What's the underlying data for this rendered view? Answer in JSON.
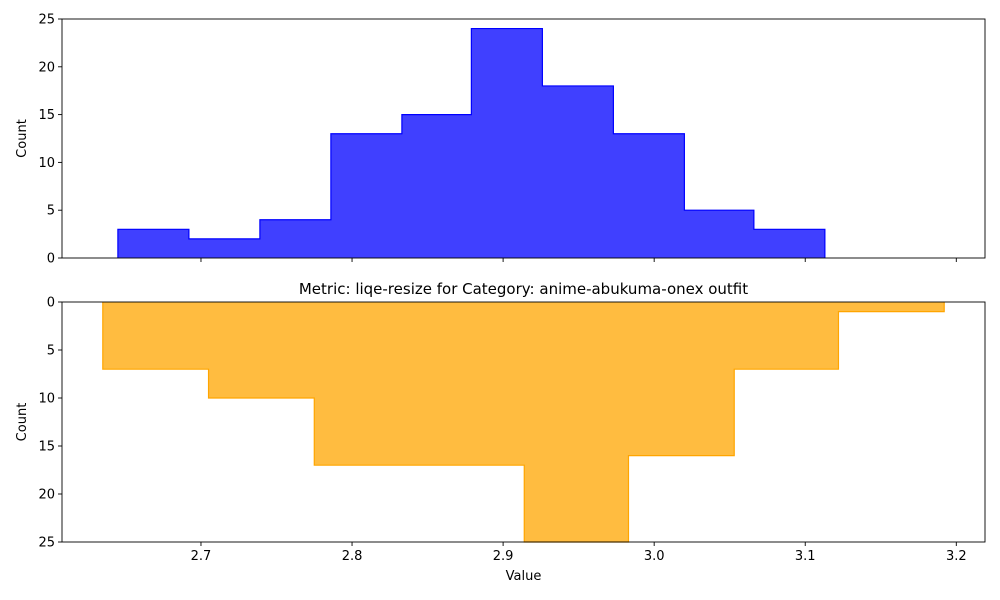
{
  "chart_data": [
    {
      "type": "bar",
      "histogram": true,
      "color": "#0000ff",
      "edge_color": "#0000ff",
      "title": "",
      "xlabel": "",
      "ylabel": "Count",
      "ylim": [
        0,
        25
      ],
      "inverted_y": false,
      "yticks": [
        0,
        5,
        10,
        15,
        20,
        25
      ],
      "bins": [
        {
          "x0": 2.645,
          "x1": 2.692,
          "count": 3
        },
        {
          "x0": 2.692,
          "x1": 2.739,
          "count": 2
        },
        {
          "x0": 2.739,
          "x1": 2.786,
          "count": 4
        },
        {
          "x0": 2.786,
          "x1": 2.833,
          "count": 13
        },
        {
          "x0": 2.833,
          "x1": 2.879,
          "count": 15
        },
        {
          "x0": 2.879,
          "x1": 2.926,
          "count": 24
        },
        {
          "x0": 2.926,
          "x1": 2.973,
          "count": 18
        },
        {
          "x0": 2.973,
          "x1": 3.02,
          "count": 13
        },
        {
          "x0": 3.02,
          "x1": 3.066,
          "count": 5
        },
        {
          "x0": 3.066,
          "x1": 3.113,
          "count": 3
        }
      ]
    },
    {
      "type": "bar",
      "histogram": true,
      "color": "#ffa500",
      "edge_color": "#ffa500",
      "title": "Metric: liqe-resize for Category: anime-abukuma-onex outfit",
      "xlabel": "Value",
      "ylabel": "Count",
      "ylim": [
        0,
        25
      ],
      "inverted_y": true,
      "yticks": [
        0,
        5,
        10,
        15,
        20,
        25
      ],
      "bins": [
        {
          "x0": 2.635,
          "x1": 2.705,
          "count": 7
        },
        {
          "x0": 2.705,
          "x1": 2.775,
          "count": 10
        },
        {
          "x0": 2.775,
          "x1": 2.844,
          "count": 17
        },
        {
          "x0": 2.844,
          "x1": 2.914,
          "count": 17
        },
        {
          "x0": 2.914,
          "x1": 2.983,
          "count": 25
        },
        {
          "x0": 2.983,
          "x1": 3.053,
          "count": 16
        },
        {
          "x0": 3.053,
          "x1": 3.122,
          "count": 7
        },
        {
          "x0": 3.122,
          "x1": 3.192,
          "count": 1
        }
      ]
    }
  ],
  "x_axis": {
    "xlim": [
      2.608,
      3.219
    ],
    "ticks": [
      2.7,
      2.8,
      2.9,
      3.0,
      3.1,
      3.2
    ],
    "tick_labels": [
      "2.7",
      "2.8",
      "2.9",
      "3.0",
      "3.1",
      "3.2"
    ]
  }
}
